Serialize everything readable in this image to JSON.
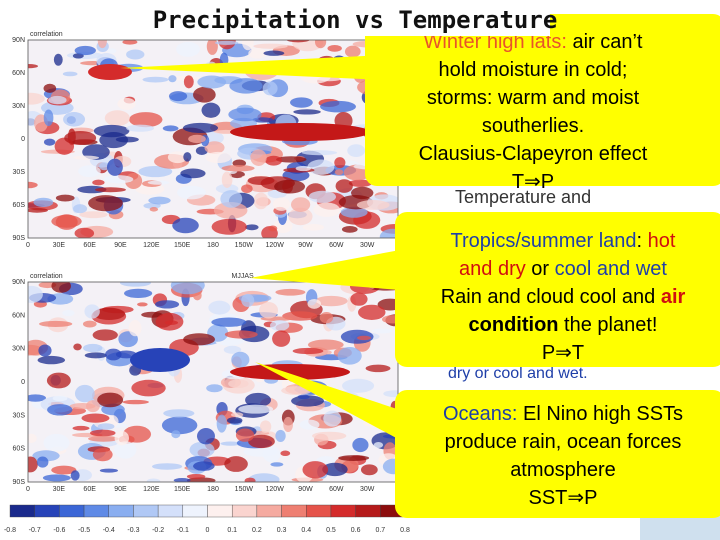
{
  "title": "Precipitation vs Temperature",
  "maps": [
    {
      "label": "correlation",
      "season": null
    },
    {
      "label": "correlation",
      "season": "MJJAS"
    }
  ],
  "lat_labels": [
    "90N",
    "60N",
    "30N",
    "0",
    "30S",
    "60S",
    "90S"
  ],
  "lon_labels": [
    "0",
    "30E",
    "60E",
    "90E",
    "120E",
    "150E",
    "180",
    "150W",
    "120W",
    "90W",
    "60W",
    "30W"
  ],
  "colorbar_labels": [
    "-0.8",
    "-0.7",
    "-0.6",
    "-0.5",
    "-0.4",
    "-0.3",
    "-0.2",
    "-0.1",
    "0",
    "0.1",
    "0.2",
    "0.3",
    "0.4",
    "0.5",
    "0.6",
    "0.7",
    "0.8"
  ],
  "background_fragments": [
    "Temperature and",
    "dry or cool and wet."
  ],
  "callouts": [
    {
      "lines": [
        [
          {
            "text": "Winter high lats:",
            "color": "#e8542a"
          },
          {
            "text": " air can’t",
            "color": "#000000"
          }
        ],
        [
          {
            "text": "hold moisture in cold;",
            "color": "#000000"
          }
        ],
        [
          {
            "text": "storms: warm and moist",
            "color": "#000000"
          }
        ],
        [
          {
            "text": "southerlies.",
            "color": "#000000"
          }
        ],
        [
          {
            "text": "Clausius-Clapeyron effect",
            "color": "#000000"
          }
        ],
        [
          {
            "text": "T⇒P",
            "color": "#000000"
          }
        ]
      ]
    },
    {
      "lines": [
        [
          {
            "text": "Tropics/summer land",
            "color": "#1f3fa8"
          },
          {
            "text": ": ",
            "color": "#000000"
          },
          {
            "text": "hot",
            "color": "#d01010"
          }
        ],
        [
          {
            "text": "and dry",
            "color": "#d01010"
          },
          {
            "text": " or ",
            "color": "#000000"
          },
          {
            "text": "cool",
            "color": "#1f3fa8"
          },
          {
            "text": " and wet",
            "color": "#1f3fa8"
          }
        ],
        [
          {
            "text": "Rain and cloud cool and ",
            "color": "#000000"
          },
          {
            "text": "air",
            "color": "#d01010",
            "bold": true
          }
        ],
        [
          {
            "text": "condition",
            "color": "#000000",
            "bold": true
          },
          {
            "text": " the planet!",
            "color": "#000000"
          }
        ],
        [
          {
            "text": "P⇒T",
            "color": "#000000"
          }
        ]
      ]
    },
    {
      "lines": [
        [
          {
            "text": "Oceans:",
            "color": "#1f3fa8"
          },
          {
            "text": " El Nino high SSTs",
            "color": "#000000"
          }
        ],
        [
          {
            "text": "produce rain, ocean forces",
            "color": "#000000"
          }
        ],
        [
          {
            "text": "atmosphere",
            "color": "#000000"
          }
        ],
        [
          {
            "text": "SST⇒P",
            "color": "#000000"
          }
        ]
      ]
    }
  ]
}
